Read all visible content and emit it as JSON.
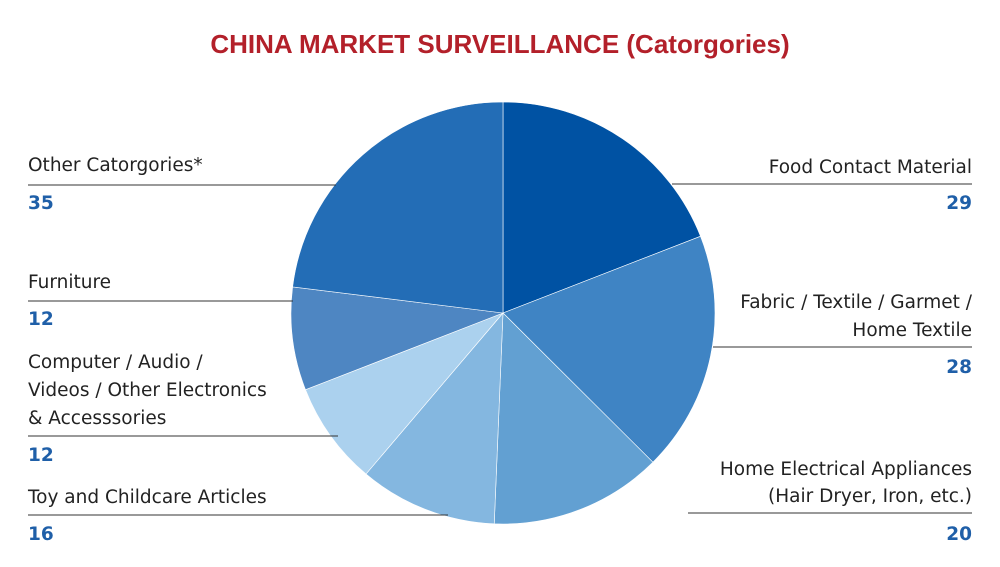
{
  "chart_data": {
    "type": "pie",
    "title": "CHINA MARKET SURVEILLANCE (Catorgories)",
    "start_angle_deg": 0,
    "direction": "clockwise",
    "slices": [
      {
        "label": [
          "Food Contact Material"
        ],
        "value": 29,
        "color": "#0052a3"
      },
      {
        "label": [
          "Fabric / Textile / Garmet /",
          "Home Textile"
        ],
        "value": 28,
        "color": "#3f84c4"
      },
      {
        "label": [
          "Home Electrical Appliances",
          "(Hair Dryer, Iron, etc.)"
        ],
        "value": 20,
        "color": "#62a0d2"
      },
      {
        "label": [
          "Toy and Childcare Articles"
        ],
        "value": 16,
        "color": "#84b7e0"
      },
      {
        "label": [
          "Computer / Audio /",
          "Videos / Other Electronics",
          "& Accesssories"
        ],
        "value": 12,
        "color": "#abd1ee"
      },
      {
        "label": [
          "Furniture"
        ],
        "value": 12,
        "color": "#4e86c2"
      },
      {
        "label": [
          "Other Catorgories*"
        ],
        "value": 35,
        "color": "#236db6"
      }
    ],
    "legend": "none",
    "colors": {
      "title": "#b3202a",
      "value_text": "#1f5fa8",
      "label_text": "#222222"
    }
  }
}
